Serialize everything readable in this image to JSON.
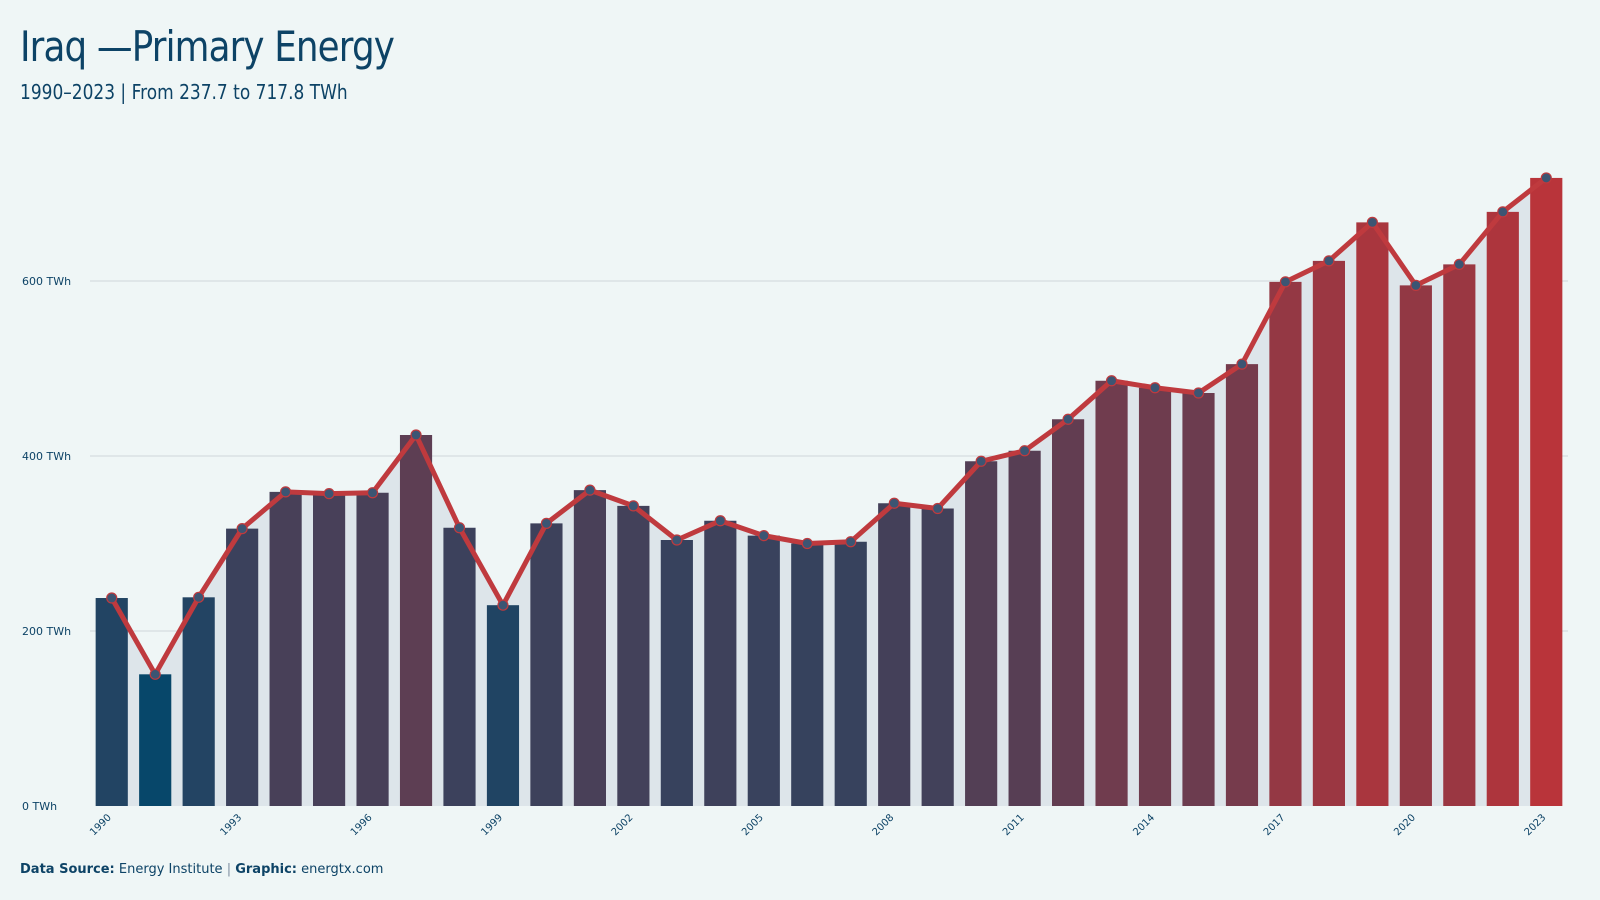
{
  "header": {
    "title": "Iraq —Primary Energy",
    "subtitle": "1990–2023 | From 237.7 to 717.8 TWh"
  },
  "footer": {
    "source_label": "Data Source:",
    "source_value": "Energy Institute",
    "separator": "|",
    "graphic_label": "Graphic:",
    "graphic_value": "energtx.com"
  },
  "colors": {
    "background": "#eff6f6",
    "low": "#07476a",
    "high": "#b9343a",
    "line": "#bf3a3e",
    "marker": "#3c5573",
    "area": "#dde5ea",
    "grid": "#cfd6da",
    "text": "#0d4366"
  },
  "chart_data": {
    "type": "bar",
    "categories": [
      "1990",
      "1991",
      "1992",
      "1993",
      "1994",
      "1995",
      "1996",
      "1997",
      "1998",
      "1999",
      "2000",
      "2001",
      "2002",
      "2003",
      "2004",
      "2005",
      "2006",
      "2007",
      "2008",
      "2009",
      "2010",
      "2011",
      "2012",
      "2013",
      "2014",
      "2015",
      "2016",
      "2017",
      "2018",
      "2019",
      "2020",
      "2021",
      "2022",
      "2023"
    ],
    "values": [
      237.7,
      150.5,
      238.5,
      317,
      359,
      357,
      358,
      424,
      318,
      229.5,
      323,
      361,
      343,
      304,
      326,
      309,
      300,
      302,
      346,
      340,
      394,
      406,
      442,
      486,
      478,
      472,
      505,
      599,
      623,
      667,
      595,
      619,
      679,
      717.8
    ],
    "overlay": {
      "type": "line",
      "values_same_as_bars": true
    },
    "xtick_labels": [
      "1990",
      "1993",
      "1996",
      "1999",
      "2002",
      "2005",
      "2008",
      "2011",
      "2014",
      "2017",
      "2020",
      "2023"
    ],
    "ylim": [
      0,
      750
    ],
    "yticks": [
      0,
      200,
      400,
      600
    ],
    "ytick_labels": [
      "0 TWh",
      "200 TWh",
      "400 TWh",
      "600 TWh"
    ],
    "grid": true,
    "legend": "none"
  }
}
